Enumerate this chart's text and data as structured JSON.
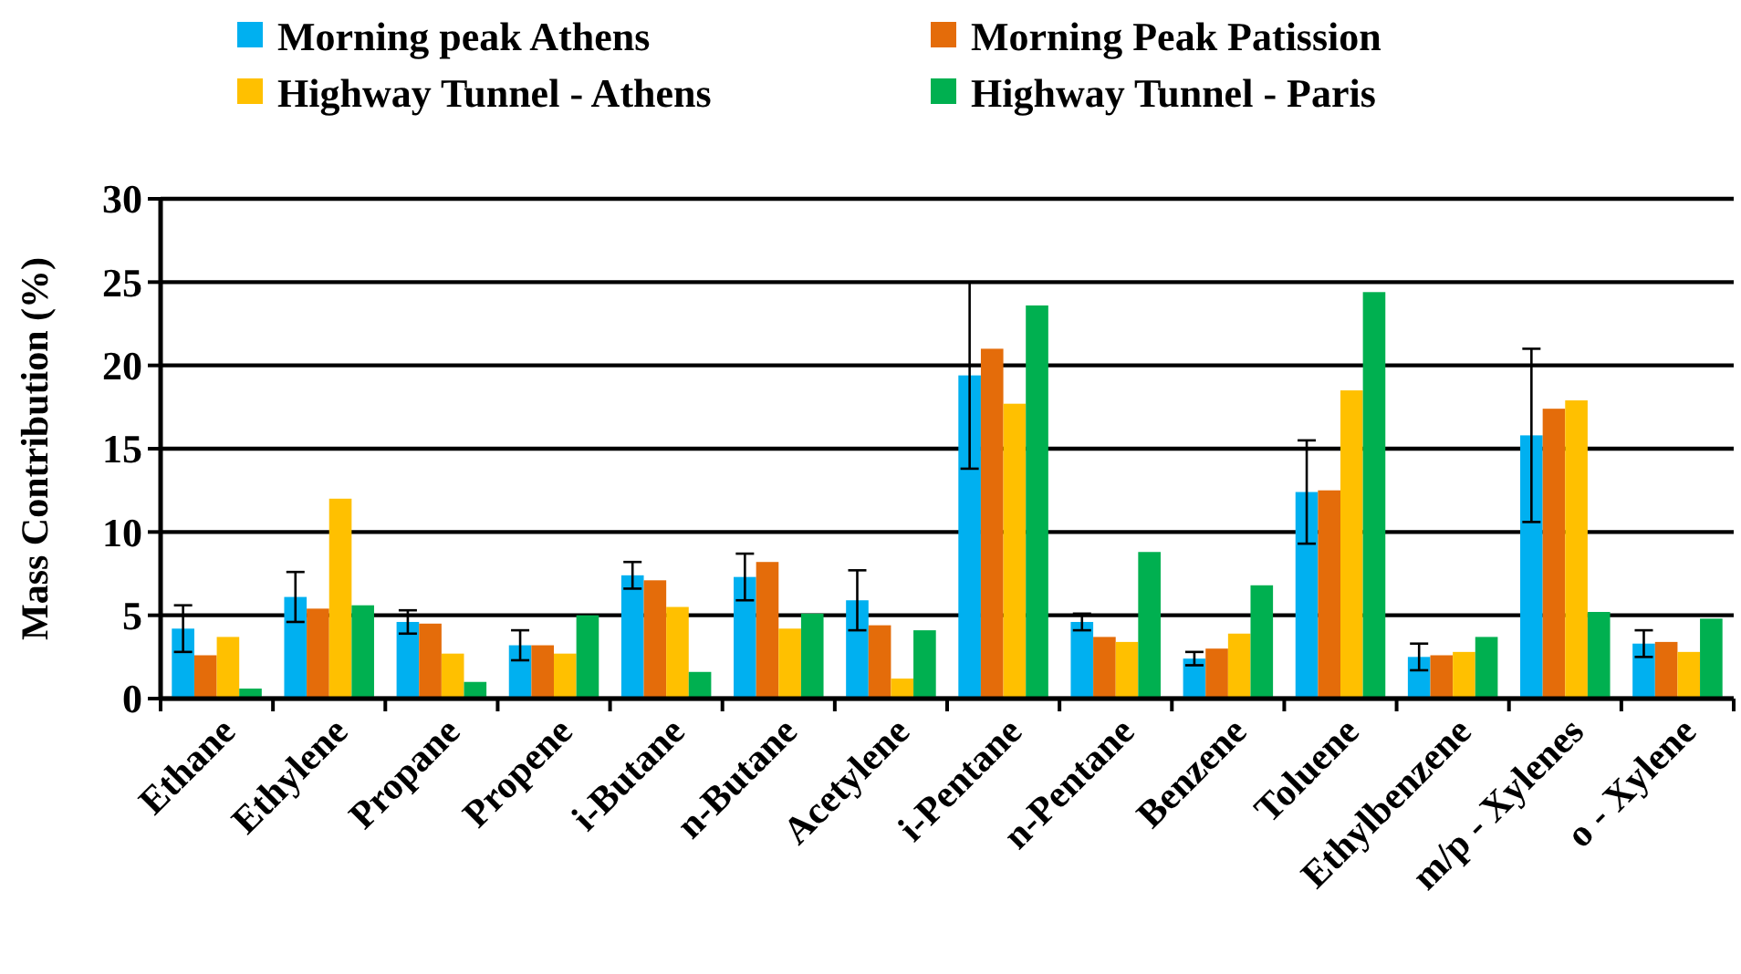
{
  "chart_data": {
    "type": "bar",
    "ylabel": "Mass Contribution (%)",
    "categories": [
      "Ethane",
      "Ethylene",
      "Propane",
      "Propene",
      "i-Butane",
      "n-Butane",
      "Acetylene",
      "i-Pentane",
      "n-Pentane",
      "Benzene",
      "Toluene",
      "Ethylbenzene",
      "m/p - Xylenes",
      "o - Xylene"
    ],
    "series": [
      {
        "name": "Morning peak Athens",
        "color": "#00b0f0",
        "values": [
          4.2,
          6.1,
          4.6,
          3.2,
          7.4,
          7.3,
          5.9,
          19.4,
          4.6,
          2.4,
          12.4,
          2.5,
          15.8,
          3.3
        ],
        "errors": [
          1.4,
          1.5,
          0.7,
          0.9,
          0.8,
          1.4,
          1.8,
          5.6,
          0.5,
          0.4,
          3.1,
          0.8,
          5.2,
          0.8
        ]
      },
      {
        "name": "Morning Peak Patission",
        "color": "#e46c0a",
        "values": [
          2.6,
          5.4,
          4.5,
          3.2,
          7.1,
          8.2,
          4.4,
          21.0,
          3.7,
          3.0,
          12.5,
          2.6,
          17.4,
          3.4
        ]
      },
      {
        "name": "Highway Tunnel - Athens",
        "color": "#ffc000",
        "values": [
          3.7,
          12.0,
          2.7,
          2.7,
          5.5,
          4.2,
          1.2,
          17.7,
          3.4,
          3.9,
          18.5,
          2.8,
          17.9,
          2.8
        ]
      },
      {
        "name": "Highway Tunnel - Paris",
        "color": "#00b050",
        "values": [
          0.6,
          5.6,
          1.0,
          5.0,
          1.6,
          5.1,
          4.1,
          23.6,
          8.8,
          6.8,
          24.4,
          3.7,
          5.2,
          4.8
        ]
      }
    ],
    "ylim": [
      0,
      30
    ],
    "yticks": [
      0,
      5,
      10,
      15,
      20,
      25,
      30
    ],
    "grid": "y",
    "legend": "top"
  }
}
